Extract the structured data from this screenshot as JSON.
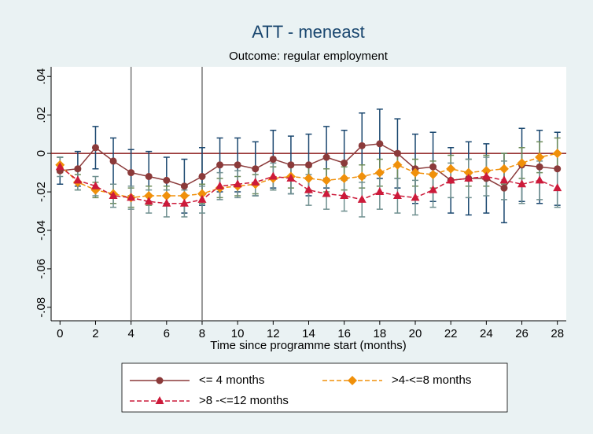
{
  "chart_data": {
    "type": "line",
    "title": "ATT - meneast",
    "subtitle": "Outcome: regular employment",
    "xlabel": "Time since programme start (months)",
    "x": [
      0,
      1,
      2,
      3,
      4,
      5,
      6,
      7,
      8,
      9,
      10,
      11,
      12,
      13,
      14,
      15,
      16,
      17,
      18,
      19,
      20,
      21,
      22,
      23,
      24,
      25,
      26,
      27,
      28
    ],
    "xlim": [
      -0.5,
      28.5
    ],
    "xticks": [
      0,
      2,
      4,
      6,
      8,
      10,
      12,
      14,
      16,
      18,
      20,
      22,
      24,
      26,
      28
    ],
    "ylim": [
      -0.087,
      0.045
    ],
    "yticks": [
      {
        "value": -0.08,
        "label": "-.08"
      },
      {
        "value": -0.06,
        "label": "-.06"
      },
      {
        "value": -0.04,
        "label": "-.04"
      },
      {
        "value": -0.02,
        "label": "-.02"
      },
      0,
      {
        "value": 0.02,
        "label": ".02"
      },
      {
        "value": 0.04,
        "label": ".04"
      }
    ],
    "xlines": [
      4,
      8
    ],
    "xline_color": "#777777",
    "yline": 0,
    "yline_color": "#8b1a1a",
    "series": [
      {
        "name": "<= 4 months",
        "color": "#8b3a3a",
        "marker": "circle",
        "error_color": "#1a476f",
        "values": [
          -0.009,
          -0.008,
          0.003,
          -0.004,
          -0.01,
          -0.012,
          -0.014,
          -0.017,
          -0.012,
          -0.006,
          -0.006,
          -0.008,
          -0.003,
          -0.006,
          -0.006,
          -0.002,
          -0.005,
          0.004,
          0.005,
          0.0,
          -0.008,
          -0.007,
          -0.014,
          -0.013,
          -0.013,
          -0.018,
          -0.006,
          -0.007,
          -0.008
        ],
        "errors": [
          0.007,
          0.009,
          0.011,
          0.012,
          0.012,
          0.013,
          0.012,
          0.014,
          0.015,
          0.014,
          0.014,
          0.014,
          0.015,
          0.015,
          0.016,
          0.016,
          0.017,
          0.017,
          0.018,
          0.018,
          0.018,
          0.018,
          0.017,
          0.019,
          0.018,
          0.018,
          0.019,
          0.019,
          0.019
        ]
      },
      {
        "name": ">4-<=8 months",
        "color": "#f0900a",
        "marker": "diamond",
        "error_color": "#6d8c5a",
        "values": [
          -0.006,
          -0.015,
          -0.019,
          -0.021,
          -0.023,
          -0.022,
          -0.022,
          -0.022,
          -0.021,
          -0.018,
          -0.017,
          -0.016,
          -0.013,
          -0.012,
          -0.013,
          -0.014,
          -0.013,
          -0.012,
          -0.01,
          -0.006,
          -0.01,
          -0.011,
          -0.008,
          -0.01,
          -0.009,
          -0.008,
          -0.005,
          -0.002,
          0.0
        ],
        "errors": [
          0.004,
          0.004,
          0.004,
          0.005,
          0.005,
          0.005,
          0.005,
          0.005,
          0.005,
          0.005,
          0.005,
          0.005,
          0.006,
          0.006,
          0.006,
          0.006,
          0.006,
          0.006,
          0.007,
          0.007,
          0.007,
          0.007,
          0.007,
          0.007,
          0.008,
          0.008,
          0.008,
          0.008,
          0.008
        ]
      },
      {
        "name": ">8 -<=12 months",
        "color": "#cc1a3a",
        "marker": "triangle",
        "error_color": "#6f8f8f",
        "values": [
          -0.007,
          -0.014,
          -0.017,
          -0.022,
          -0.023,
          -0.025,
          -0.026,
          -0.026,
          -0.024,
          -0.017,
          -0.016,
          -0.015,
          -0.012,
          -0.013,
          -0.019,
          -0.021,
          -0.022,
          -0.024,
          -0.02,
          -0.022,
          -0.023,
          -0.019,
          -0.014,
          -0.013,
          -0.012,
          -0.014,
          -0.016,
          -0.014,
          -0.018
        ],
        "errors": [
          0.005,
          0.005,
          0.005,
          0.006,
          0.006,
          0.006,
          0.007,
          0.007,
          0.007,
          0.007,
          0.007,
          0.007,
          0.007,
          0.008,
          0.008,
          0.008,
          0.008,
          0.009,
          0.009,
          0.009,
          0.009,
          0.009,
          0.009,
          0.01,
          0.01,
          0.01,
          0.01,
          0.01,
          0.01
        ]
      }
    ]
  }
}
